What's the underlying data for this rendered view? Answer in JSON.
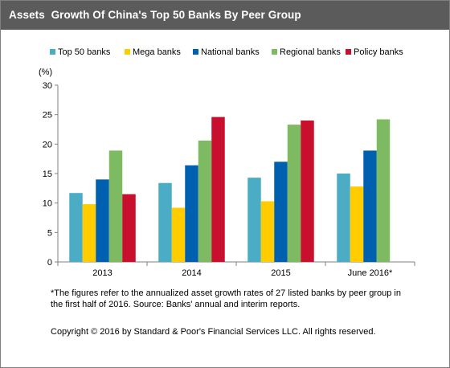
{
  "title": "Assets  Growth Of China's Top 50 Banks By Peer Group",
  "unit_label": "(%)",
  "footnote": "*The figures refer to the annualized asset growth rates of 27 listed banks by peer  group in the first half of 2016. Source: Banks' annual and interim reports.",
  "copyright": "Copyright © 2016 by Standard & Poor's Financial Services LLC. All rights reserved.",
  "chart_data": {
    "type": "bar",
    "title": "Assets  Growth Of China's Top 50 Banks By Peer Group",
    "ylabel": "(%)",
    "ylim": [
      0,
      30
    ],
    "yticks": [
      0,
      5,
      10,
      15,
      20,
      25,
      30
    ],
    "categories": [
      "2013",
      "2014",
      "2015",
      "June 2016*"
    ],
    "series": [
      {
        "name": "Top 50 banks",
        "color": "#4bacc6",
        "values": [
          11.7,
          13.4,
          14.3,
          15.0
        ]
      },
      {
        "name": "Mega banks",
        "color": "#ffcc00",
        "values": [
          9.8,
          9.2,
          10.3,
          12.8
        ]
      },
      {
        "name": "National banks",
        "color": "#0060b0",
        "values": [
          14.0,
          16.4,
          17.0,
          18.9
        ]
      },
      {
        "name": "Regional banks",
        "color": "#7dba62",
        "values": [
          18.9,
          20.6,
          23.3,
          24.2
        ]
      },
      {
        "name": "Policy banks",
        "color": "#c8102e",
        "values": [
          11.5,
          24.6,
          24.0,
          null
        ]
      }
    ],
    "legend": "top",
    "grid": false
  }
}
